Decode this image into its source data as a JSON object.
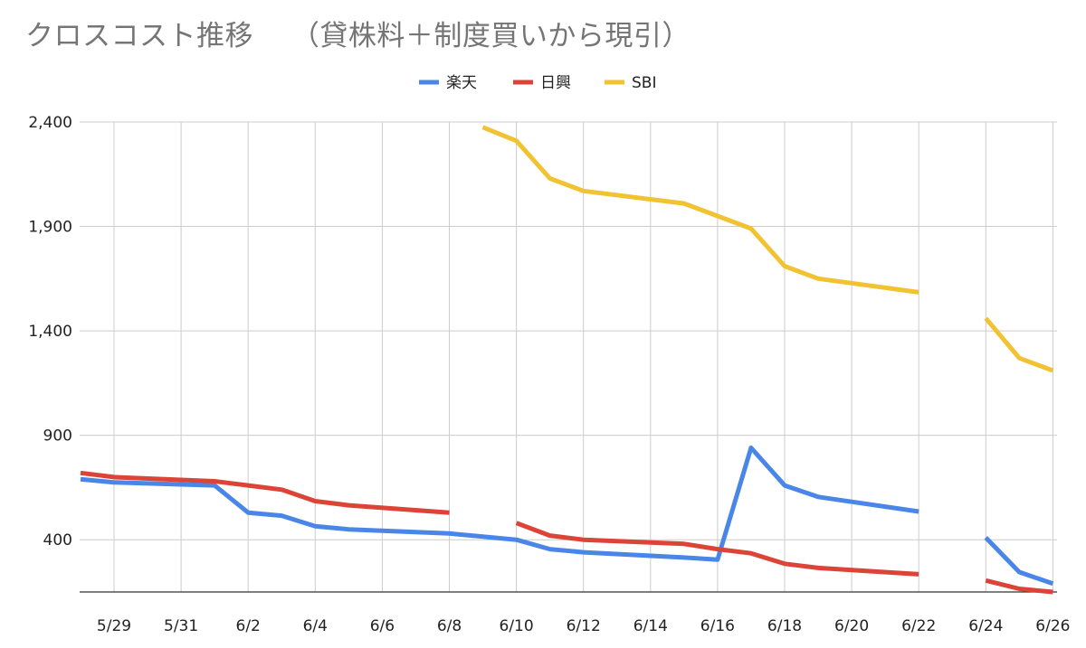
{
  "chart_data": {
    "type": "line",
    "title": "クロスコスト推移　 （貸株料＋制度買いから現引）",
    "xlabel": "",
    "ylabel": "",
    "x_start": "5/28",
    "x_tick_labels": [
      "5/29",
      "5/31",
      "6/2",
      "6/4",
      "6/6",
      "6/8",
      "6/10",
      "6/12",
      "6/14",
      "6/16",
      "6/18",
      "6/20",
      "6/22",
      "6/24",
      "6/26"
    ],
    "ylim": [
      150,
      2400
    ],
    "y_ticks": [
      400,
      900,
      1400,
      1900,
      2400
    ],
    "y_tick_labels": [
      "400",
      "900",
      "1,400",
      "1,900",
      "2,400"
    ],
    "grid": true,
    "legend_position": "top-center",
    "dates": [
      "5/28",
      "5/29",
      "6/1",
      "6/2",
      "6/3",
      "6/4",
      "6/5",
      "6/8",
      "6/9",
      "6/10",
      "6/11",
      "6/12",
      "6/15",
      "6/16",
      "6/17",
      "6/18",
      "6/19",
      "6/22",
      "6/23",
      "6/24",
      "6/25",
      "6/26"
    ],
    "series": [
      {
        "name": "楽天",
        "color": "#4a86e8",
        "values": [
          690,
          675,
          660,
          530,
          515,
          465,
          450,
          430,
          415,
          400,
          355,
          340,
          315,
          305,
          840,
          660,
          605,
          535,
          null,
          410,
          245,
          190
        ]
      },
      {
        "name": "日興",
        "color": "#db4437",
        "values": [
          720,
          700,
          680,
          660,
          640,
          585,
          565,
          530,
          null,
          480,
          420,
          400,
          380,
          355,
          335,
          285,
          265,
          235,
          null,
          205,
          165,
          150
        ]
      },
      {
        "name": "SBI",
        "color": "#f1c232",
        "values": [
          null,
          null,
          null,
          null,
          null,
          null,
          null,
          null,
          2375,
          2310,
          2130,
          2070,
          2010,
          1950,
          1890,
          1710,
          1650,
          1585,
          null,
          1460,
          1270,
          1210
        ]
      }
    ]
  }
}
